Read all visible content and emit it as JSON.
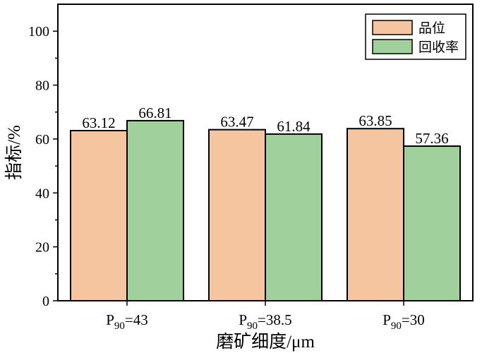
{
  "chart_data": {
    "type": "bar",
    "categories": [
      "P90=43",
      "P90=38.5",
      "P90=30"
    ],
    "category_parts": [
      {
        "base": "P",
        "sub": "90",
        "rest": "=43"
      },
      {
        "base": "P",
        "sub": "90",
        "rest": "=38.5"
      },
      {
        "base": "P",
        "sub": "90",
        "rest": "=30"
      }
    ],
    "series": [
      {
        "name": "品位",
        "values": [
          63.12,
          63.47,
          63.85
        ],
        "color": "#f4c59e"
      },
      {
        "name": "回收率",
        "values": [
          66.81,
          61.84,
          57.36
        ],
        "color": "#a0d09b"
      }
    ],
    "value_labels": [
      [
        "63.12",
        "63.47",
        "63.85"
      ],
      [
        "66.81",
        "61.84",
        "57.36"
      ]
    ],
    "xlabel": "磨矿细度/μm",
    "ylabel": "指标/%",
    "ylim": [
      0,
      110
    ],
    "yticks": [
      0,
      20,
      40,
      60,
      80,
      100
    ],
    "grid": false,
    "legend_position": "top-right"
  }
}
